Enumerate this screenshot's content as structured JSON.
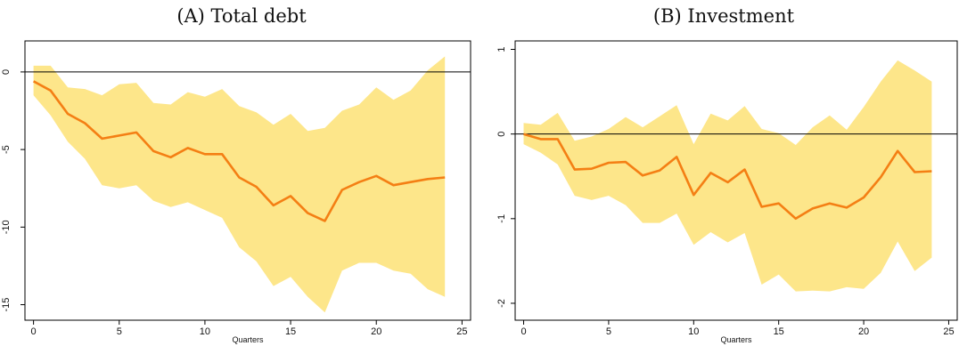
{
  "colors": {
    "band": "#fde68a",
    "line": "#f47f14",
    "zero_line": "#000000",
    "frame": "#000000"
  },
  "chart_data": [
    {
      "type": "line",
      "title": "(A) Total debt",
      "xlabel": "Quarters",
      "ylabel": "",
      "xlim": [
        -0.5,
        25.5
      ],
      "ylim": [
        -16,
        2
      ],
      "xticks": [
        0,
        5,
        10,
        15,
        20,
        25
      ],
      "yticks": [
        0,
        -5,
        -10,
        -15
      ],
      "x": [
        0,
        1,
        2,
        3,
        4,
        5,
        6,
        7,
        8,
        9,
        10,
        11,
        12,
        13,
        14,
        15,
        16,
        17,
        18,
        19,
        20,
        21,
        22,
        23,
        24
      ],
      "series": [
        {
          "role": "estimate",
          "values": [
            -0.6,
            -1.2,
            -2.7,
            -3.3,
            -4.3,
            -4.1,
            -3.9,
            -5.1,
            -5.5,
            -4.9,
            -5.3,
            -5.3,
            -6.8,
            -7.4,
            -8.6,
            -8.0,
            -9.1,
            -9.6,
            -7.6,
            -7.1,
            -6.7,
            -7.3,
            -7.1,
            -6.9,
            -6.8
          ]
        },
        {
          "role": "upper",
          "values": [
            0.4,
            0.4,
            -1.0,
            -1.1,
            -1.5,
            -0.8,
            -0.7,
            -2.0,
            -2.1,
            -1.3,
            -1.6,
            -1.1,
            -2.2,
            -2.6,
            -3.4,
            -2.7,
            -3.8,
            -3.6,
            -2.5,
            -2.1,
            -1.0,
            -1.8,
            -1.2,
            0.1,
            1.0
          ]
        },
        {
          "role": "lower",
          "values": [
            -1.5,
            -2.8,
            -4.5,
            -5.6,
            -7.3,
            -7.5,
            -7.3,
            -8.3,
            -8.7,
            -8.4,
            -8.9,
            -9.4,
            -11.3,
            -12.2,
            -13.8,
            -13.2,
            -14.5,
            -15.5,
            -12.8,
            -12.3,
            -12.3,
            -12.8,
            -13.0,
            -14.0,
            -14.5
          ]
        }
      ],
      "reference_line_y": 0
    },
    {
      "type": "line",
      "title": "(B) Investment",
      "xlabel": "Quarters",
      "ylabel": "",
      "xlim": [
        -0.5,
        25.5
      ],
      "ylim": [
        -2.2,
        1.1
      ],
      "xticks": [
        0,
        5,
        10,
        15,
        20,
        25
      ],
      "yticks": [
        1,
        0,
        -1,
        -2
      ],
      "x": [
        0,
        1,
        2,
        3,
        4,
        5,
        6,
        7,
        8,
        9,
        10,
        11,
        12,
        13,
        14,
        15,
        16,
        17,
        18,
        19,
        20,
        21,
        22,
        23,
        24
      ],
      "series": [
        {
          "role": "estimate",
          "values": [
            0.0,
            -0.06,
            -0.06,
            -0.42,
            -0.41,
            -0.34,
            -0.33,
            -0.49,
            -0.43,
            -0.27,
            -0.72,
            -0.46,
            -0.57,
            -0.42,
            -0.86,
            -0.82,
            -1.0,
            -0.88,
            -0.82,
            -0.87,
            -0.75,
            -0.51,
            -0.2,
            -0.45,
            -0.44
          ]
        },
        {
          "role": "upper",
          "values": [
            0.13,
            0.11,
            0.25,
            -0.08,
            -0.03,
            0.06,
            0.2,
            0.08,
            0.21,
            0.34,
            -0.12,
            0.24,
            0.16,
            0.33,
            0.06,
            0.01,
            -0.13,
            0.08,
            0.22,
            0.05,
            0.32,
            0.62,
            0.87,
            0.75,
            0.62
          ]
        },
        {
          "role": "lower",
          "values": [
            -0.12,
            -0.22,
            -0.36,
            -0.73,
            -0.78,
            -0.73,
            -0.84,
            -1.05,
            -1.05,
            -0.94,
            -1.31,
            -1.16,
            -1.28,
            -1.17,
            -1.78,
            -1.66,
            -1.86,
            -1.85,
            -1.86,
            -1.81,
            -1.83,
            -1.64,
            -1.27,
            -1.62,
            -1.46
          ]
        }
      ],
      "reference_line_y": 0
    }
  ]
}
